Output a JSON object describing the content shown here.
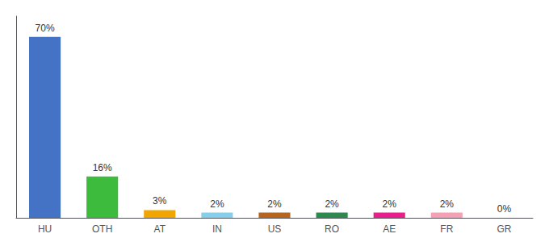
{
  "chart_data": {
    "type": "bar",
    "categories": [
      "HU",
      "OTH",
      "AT",
      "IN",
      "US",
      "RO",
      "AE",
      "FR",
      "GR"
    ],
    "values": [
      70,
      16,
      3,
      2,
      2,
      2,
      2,
      2,
      0
    ],
    "value_labels": [
      "70%",
      "16%",
      "3%",
      "2%",
      "2%",
      "2%",
      "2%",
      "2%",
      "0%"
    ],
    "data_labels": true,
    "colors": [
      "#4472c4",
      "#3dbb3d",
      "#f0a500",
      "#87ceeb",
      "#b5651d",
      "#2d8a4e",
      "#e91e8c",
      "#f4a0b5",
      "#cccccc"
    ],
    "ylim": [
      0,
      78
    ],
    "tick_labels": "x",
    "grid": false
  }
}
